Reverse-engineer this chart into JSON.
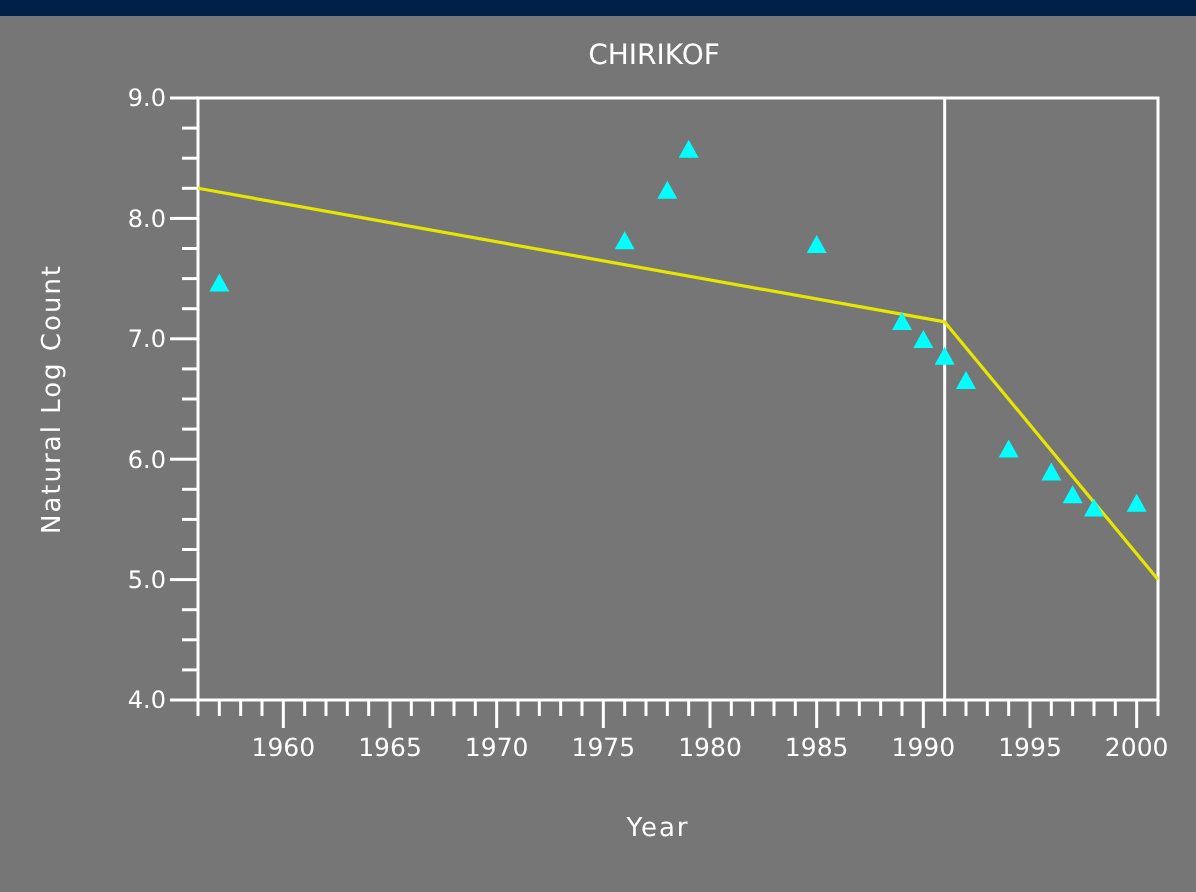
{
  "chart_data": {
    "type": "scatter",
    "title": "CHIRIKOF",
    "xlabel": "Year",
    "ylabel": "Natural Log Count",
    "series": [
      {
        "color": "#00ffff",
        "marker": "triangle",
        "x": [
          1957,
          1976,
          1978,
          1979,
          1985,
          1989,
          1990,
          1991,
          1992,
          1994,
          1996,
          1997,
          1998,
          2000
        ],
        "values": [
          7.46,
          7.81,
          8.23,
          8.57,
          7.78,
          7.14,
          6.99,
          6.85,
          6.65,
          6.08,
          5.89,
          5.7,
          5.59,
          5.63
        ]
      },
      {
        "type": "line",
        "color": "#e6e600",
        "x": [
          1956,
          1991,
          2001
        ],
        "values": [
          8.25,
          7.14,
          5.0
        ]
      }
    ],
    "ref_lines": [
      {
        "axis": "x",
        "value": 1991,
        "color": "#ffffff"
      }
    ],
    "xlim": [
      1956,
      2001
    ],
    "ylim": [
      4.0,
      9.0
    ],
    "xticks": [
      {
        "value": 1956,
        "label": null
      },
      {
        "value": 1957,
        "label": null
      },
      {
        "value": 1958,
        "label": null
      },
      {
        "value": 1959,
        "label": null
      },
      1960,
      {
        "value": 1961,
        "label": null
      },
      {
        "value": 1962,
        "label": null
      },
      {
        "value": 1963,
        "label": null
      },
      {
        "value": 1964,
        "label": null
      },
      1965,
      {
        "value": 1966,
        "label": null
      },
      {
        "value": 1967,
        "label": null
      },
      {
        "value": 1968,
        "label": null
      },
      {
        "value": 1969,
        "label": null
      },
      1970,
      {
        "value": 1971,
        "label": null
      },
      {
        "value": 1972,
        "label": null
      },
      {
        "value": 1973,
        "label": null
      },
      {
        "value": 1974,
        "label": null
      },
      1975,
      {
        "value": 1976,
        "label": null
      },
      {
        "value": 1977,
        "label": null
      },
      {
        "value": 1978,
        "label": null
      },
      {
        "value": 1979,
        "label": null
      },
      1980,
      {
        "value": 1981,
        "label": null
      },
      {
        "value": 1982,
        "label": null
      },
      {
        "value": 1983,
        "label": null
      },
      {
        "value": 1984,
        "label": null
      },
      1985,
      {
        "value": 1986,
        "label": null
      },
      {
        "value": 1987,
        "label": null
      },
      {
        "value": 1988,
        "label": null
      },
      {
        "value": 1989,
        "label": null
      },
      1990,
      {
        "value": 1991,
        "label": null
      },
      {
        "value": 1992,
        "label": null
      },
      {
        "value": 1993,
        "label": null
      },
      {
        "value": 1994,
        "label": null
      },
      1995,
      {
        "value": 1996,
        "label": null
      },
      {
        "value": 1997,
        "label": null
      },
      {
        "value": 1998,
        "label": null
      },
      {
        "value": 1999,
        "label": null
      },
      2000,
      {
        "value": 2001,
        "label": null
      }
    ],
    "yticks": [
      {
        "value": 4.0,
        "label": "4.0"
      },
      {
        "value": 4.25,
        "label": null
      },
      {
        "value": 4.5,
        "label": null
      },
      {
        "value": 4.75,
        "label": null
      },
      {
        "value": 5.0,
        "label": "5.0"
      },
      {
        "value": 5.25,
        "label": null
      },
      {
        "value": 5.5,
        "label": null
      },
      {
        "value": 5.75,
        "label": null
      },
      {
        "value": 6.0,
        "label": "6.0"
      },
      {
        "value": 6.25,
        "label": null
      },
      {
        "value": 6.5,
        "label": null
      },
      {
        "value": 6.75,
        "label": null
      },
      {
        "value": 7.0,
        "label": "7.0"
      },
      {
        "value": 7.25,
        "label": null
      },
      {
        "value": 7.5,
        "label": null
      },
      {
        "value": 7.75,
        "label": null
      },
      {
        "value": 8.0,
        "label": "8.0"
      },
      {
        "value": 8.25,
        "label": null
      },
      {
        "value": 8.5,
        "label": null
      },
      {
        "value": 8.75,
        "label": null
      },
      {
        "value": 9.0,
        "label": "9.0"
      }
    ],
    "grid": false
  }
}
